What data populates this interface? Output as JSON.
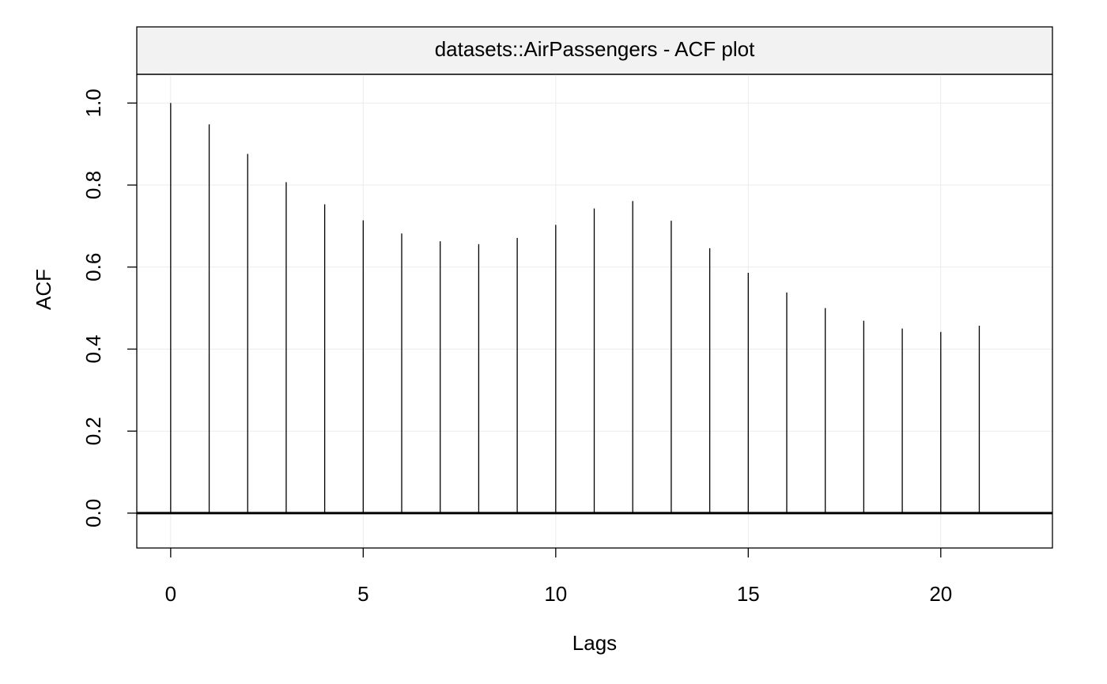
{
  "chart_data": {
    "type": "bar",
    "title": "datasets::AirPassengers - ACF plot",
    "xlabel": "Lags",
    "ylabel": "ACF",
    "x": [
      0,
      1,
      2,
      3,
      4,
      5,
      6,
      7,
      8,
      9,
      10,
      11,
      12,
      13,
      14,
      15,
      16,
      17,
      18,
      19,
      20,
      21
    ],
    "values": [
      1.0,
      0.948,
      0.876,
      0.807,
      0.753,
      0.714,
      0.682,
      0.663,
      0.656,
      0.671,
      0.703,
      0.743,
      0.761,
      0.713,
      0.646,
      0.586,
      0.538,
      0.5,
      0.469,
      0.45,
      0.442,
      0.457
    ],
    "xlim": [
      -0.88,
      22.9
    ],
    "ylim": [
      -0.085,
      1.07
    ],
    "xticks": [
      "0",
      "5",
      "10",
      "15",
      "20"
    ],
    "yticks": [
      "0.0",
      "0.2",
      "0.4",
      "0.6",
      "0.8",
      "1.0"
    ],
    "grid": true,
    "zero_line": true
  }
}
